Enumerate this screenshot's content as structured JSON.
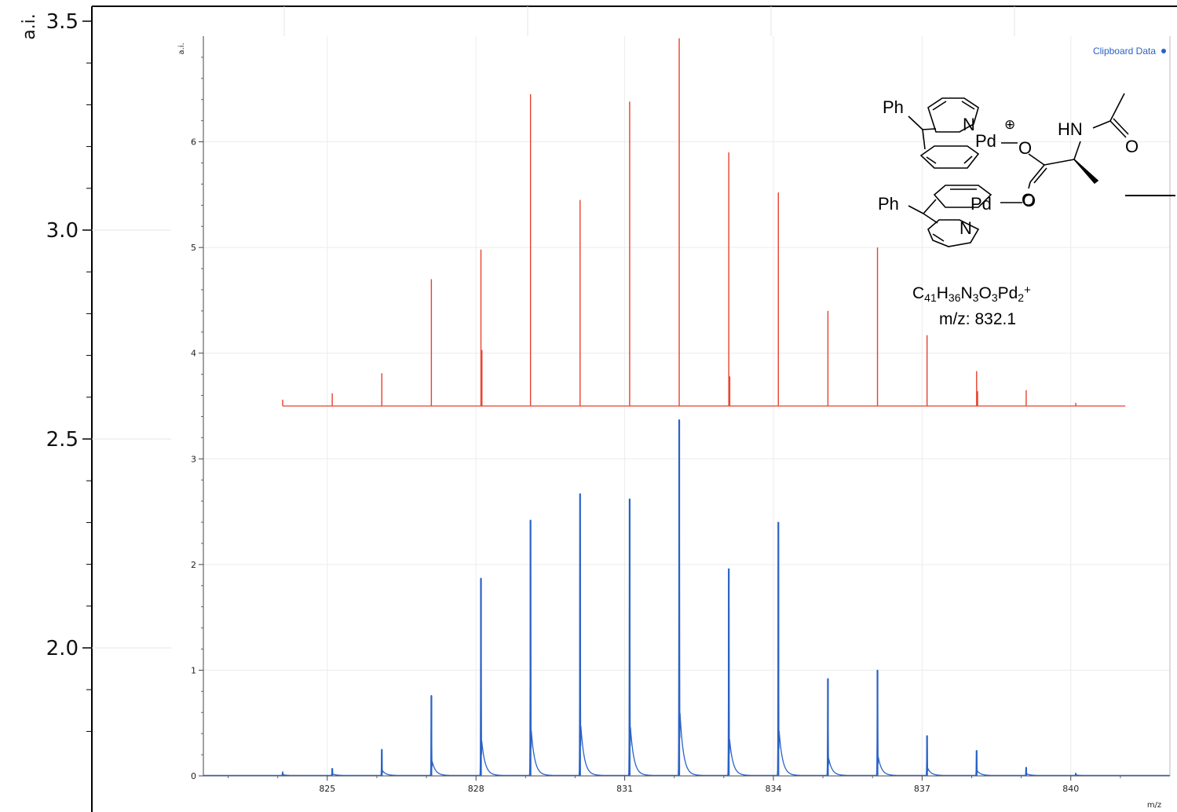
{
  "chart_data": {
    "type": "line",
    "outer_axis": {
      "ylabel": "a.i.",
      "ticks": [
        "3.5",
        "3.0",
        "2.5",
        "2.0"
      ],
      "tick_values": [
        3.5,
        3.0,
        2.5,
        2.0
      ]
    },
    "inner_axis": {
      "ylabel": "a.i.",
      "xlabel": "m/z",
      "xlim": [
        822.5,
        842
      ],
      "ylim": [
        0,
        7
      ],
      "x_ticks": [
        825,
        828,
        831,
        834,
        837,
        840
      ],
      "y_ticks": [
        0,
        1,
        2,
        3,
        4,
        5,
        6
      ],
      "grid": true
    },
    "legend": {
      "label": "Clipboard Data",
      "placement": "top-right",
      "color": "#2a62c6"
    },
    "series": [
      {
        "name": "",
        "color": "#e8412c",
        "baseline": 3.5,
        "peaks": [
          {
            "x": 824.1,
            "y": 3.56
          },
          {
            "x": 825.1,
            "y": 3.62
          },
          {
            "x": 826.1,
            "y": 3.81
          },
          {
            "x": 827.1,
            "y": 4.7
          },
          {
            "x": 828.1,
            "y": 4.98
          },
          {
            "x": 828.12,
            "y": 4.03
          },
          {
            "x": 829.1,
            "y": 6.45
          },
          {
            "x": 830.1,
            "y": 5.45
          },
          {
            "x": 831.1,
            "y": 6.38
          },
          {
            "x": 832.1,
            "y": 6.98
          },
          {
            "x": 833.1,
            "y": 5.9
          },
          {
            "x": 833.12,
            "y": 3.78
          },
          {
            "x": 834.1,
            "y": 5.52
          },
          {
            "x": 835.1,
            "y": 4.4
          },
          {
            "x": 836.1,
            "y": 5.0
          },
          {
            "x": 837.1,
            "y": 4.17
          },
          {
            "x": 838.1,
            "y": 3.83
          },
          {
            "x": 838.12,
            "y": 3.64
          },
          {
            "x": 839.1,
            "y": 3.65
          },
          {
            "x": 840.1,
            "y": 3.53
          }
        ],
        "x_start": 824.1,
        "x_end": 841.1
      },
      {
        "name": "Clipboard Data",
        "color": "#2a62c6",
        "peaks": [
          {
            "x": 824.1,
            "y": 0.03
          },
          {
            "x": 825.1,
            "y": 0.07
          },
          {
            "x": 826.1,
            "y": 0.25
          },
          {
            "x": 827.1,
            "y": 0.76
          },
          {
            "x": 828.1,
            "y": 1.87
          },
          {
            "x": 829.1,
            "y": 2.42
          },
          {
            "x": 830.1,
            "y": 2.67
          },
          {
            "x": 831.1,
            "y": 2.62
          },
          {
            "x": 832.1,
            "y": 3.37
          },
          {
            "x": 833.1,
            "y": 1.96
          },
          {
            "x": 834.1,
            "y": 2.4
          },
          {
            "x": 835.1,
            "y": 0.92
          },
          {
            "x": 836.1,
            "y": 1.0
          },
          {
            "x": 837.1,
            "y": 0.38
          },
          {
            "x": 838.1,
            "y": 0.24
          },
          {
            "x": 839.1,
            "y": 0.08
          },
          {
            "x": 840.1,
            "y": 0.02
          }
        ]
      }
    ],
    "annotation": {
      "structure_labels": [
        "Ph",
        "N",
        "Pd",
        "⊕",
        "O",
        "HN",
        "O",
        "O",
        "Ph",
        "Pd",
        "O",
        "N"
      ],
      "formula_parts": [
        {
          "t": "C",
          "sub": false
        },
        {
          "t": "41",
          "sub": true
        },
        {
          "t": "H",
          "sub": false
        },
        {
          "t": "36",
          "sub": true
        },
        {
          "t": "N",
          "sub": false
        },
        {
          "t": "3",
          "sub": true
        },
        {
          "t": "O",
          "sub": false
        },
        {
          "t": "3",
          "sub": true
        },
        {
          "t": "Pd",
          "sub": false
        },
        {
          "t": "2",
          "sub": true
        },
        {
          "t": "+",
          "sup": true
        }
      ],
      "mz_label": "m/z: 832.1"
    }
  }
}
